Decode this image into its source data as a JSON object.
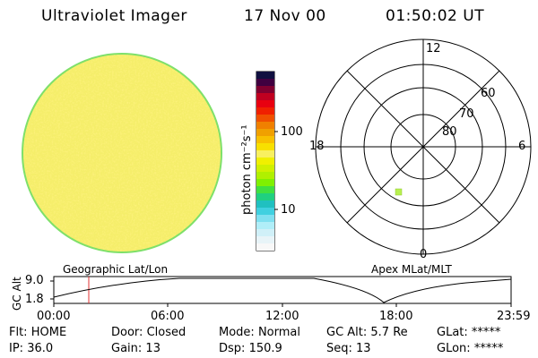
{
  "header": {
    "instrument": "Ultraviolet Imager",
    "date": "17 Nov 00",
    "time": "01:50:02 UT"
  },
  "colorbar": {
    "unit_label": "photon cm⁻²s⁻¹",
    "ticks": [
      "100",
      "10"
    ]
  },
  "polar_plot": {
    "mlt_labels": [
      "12",
      "18",
      "6",
      "0"
    ],
    "lat_labels": [
      "60",
      "70",
      "80"
    ]
  },
  "altitude_plot": {
    "left_title": "Geographic Lat/Lon",
    "right_title": "Apex MLat/MLT",
    "ylabel": "GC Alt",
    "y_ticks": [
      "9.0",
      "1.8"
    ],
    "x_ticks": [
      "00:00",
      "06:00",
      "12:00",
      "18:00",
      "23:59"
    ]
  },
  "status": {
    "row1": [
      {
        "label": "Flt:",
        "value": "HOME"
      },
      {
        "label": "Door:",
        "value": "Closed"
      },
      {
        "label": "Mode:",
        "value": "Normal"
      },
      {
        "label": "GC Alt:",
        "value": "5.7 Re"
      },
      {
        "label": "GLat:",
        "value": "*****"
      }
    ],
    "row2": [
      {
        "label": "IP:",
        "value": "36.0"
      },
      {
        "label": "Gain:",
        "value": "13"
      },
      {
        "label": "Dsp:",
        "value": "150.9"
      },
      {
        "label": "Seq:",
        "value": "13"
      },
      {
        "label": "GLon:",
        "value": "*****"
      }
    ]
  },
  "colors": {
    "disk_fill": "#f2e85a",
    "disk_edge": "#7ee06a",
    "marker": "#b8f050",
    "time_marker": "#e03030"
  }
}
